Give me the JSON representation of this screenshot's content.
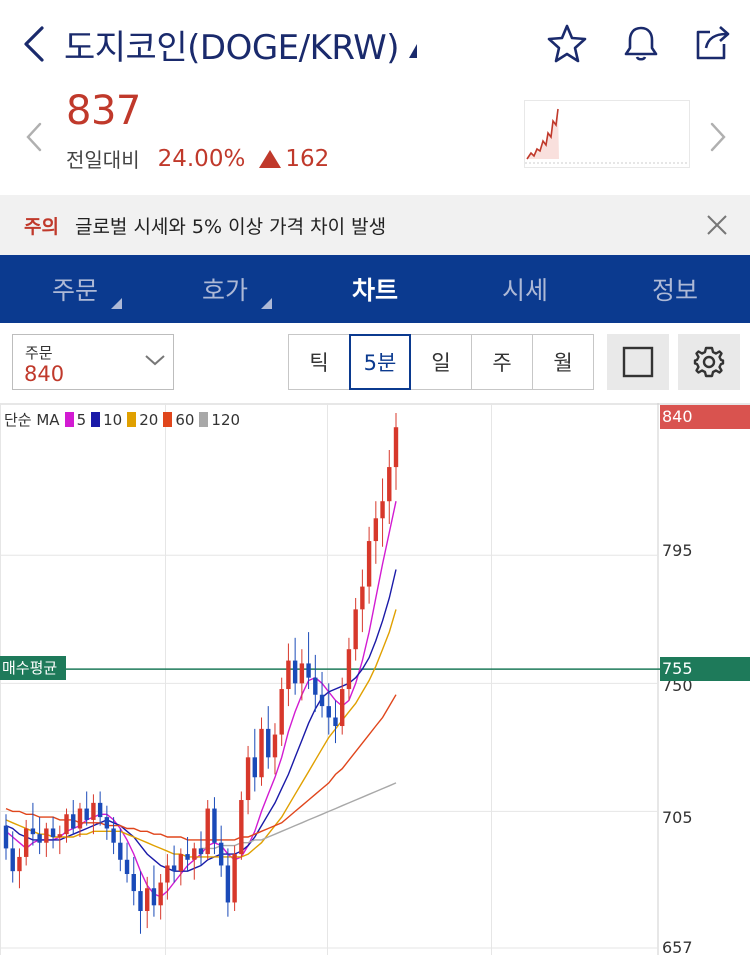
{
  "header": {
    "title": "도지코인(DOGE/KRW)",
    "icons": [
      "back-icon",
      "star-icon",
      "bell-icon",
      "share-icon"
    ]
  },
  "price_panel": {
    "price": "837",
    "change_label": "전일대비",
    "change_percent": "24.00%",
    "change_amount": "162",
    "colors": {
      "up": "#c0392b"
    }
  },
  "notice": {
    "tag": "주의",
    "text": "글로벌 시세와 5% 이상 가격 차이 발생"
  },
  "tabs": [
    {
      "label": "주문",
      "active": false,
      "has_sub": true
    },
    {
      "label": "호가",
      "active": false,
      "has_sub": true
    },
    {
      "label": "차트",
      "active": true,
      "has_sub": false
    },
    {
      "label": "시세",
      "active": false,
      "has_sub": false
    },
    {
      "label": "정보",
      "active": false,
      "has_sub": false
    }
  ],
  "controls": {
    "order_label": "주문",
    "order_value": "840",
    "periods": [
      {
        "label": "틱",
        "active": false
      },
      {
        "label": "5분",
        "active": true
      },
      {
        "label": "일",
        "active": false
      },
      {
        "label": "주",
        "active": false
      },
      {
        "label": "월",
        "active": false
      }
    ]
  },
  "chart_legend": {
    "prefix": "단순 MA",
    "items": [
      {
        "label": "5",
        "color": "#d21bd2"
      },
      {
        "label": "10",
        "color": "#1a1aa8"
      },
      {
        "label": "20",
        "color": "#e0a000"
      },
      {
        "label": "60",
        "color": "#e0461c"
      },
      {
        "label": "120",
        "color": "#a8a8a8"
      }
    ]
  },
  "chart_data": {
    "type": "candlestick",
    "interval": "5분",
    "y_ticks": [
      840,
      795,
      750,
      705,
      657
    ],
    "current_price_label": "840",
    "avg_buy_label": "매수평균",
    "avg_buy_value": "755",
    "ylim": [
      657,
      845
    ],
    "candles": [
      {
        "o": 700,
        "h": 704,
        "l": 688,
        "c": 692
      },
      {
        "o": 692,
        "h": 698,
        "l": 680,
        "c": 684
      },
      {
        "o": 684,
        "h": 692,
        "l": 678,
        "c": 689
      },
      {
        "o": 689,
        "h": 702,
        "l": 686,
        "c": 699
      },
      {
        "o": 699,
        "h": 708,
        "l": 693,
        "c": 697
      },
      {
        "o": 697,
        "h": 703,
        "l": 690,
        "c": 694
      },
      {
        "o": 694,
        "h": 701,
        "l": 689,
        "c": 699
      },
      {
        "o": 699,
        "h": 703,
        "l": 692,
        "c": 696
      },
      {
        "o": 696,
        "h": 700,
        "l": 690,
        "c": 697
      },
      {
        "o": 697,
        "h": 706,
        "l": 694,
        "c": 704
      },
      {
        "o": 704,
        "h": 709,
        "l": 697,
        "c": 699
      },
      {
        "o": 699,
        "h": 708,
        "l": 696,
        "c": 706
      },
      {
        "o": 706,
        "h": 712,
        "l": 700,
        "c": 702
      },
      {
        "o": 702,
        "h": 711,
        "l": 697,
        "c": 708
      },
      {
        "o": 708,
        "h": 712,
        "l": 700,
        "c": 703
      },
      {
        "o": 703,
        "h": 707,
        "l": 695,
        "c": 699
      },
      {
        "o": 699,
        "h": 703,
        "l": 690,
        "c": 694
      },
      {
        "o": 694,
        "h": 699,
        "l": 684,
        "c": 688
      },
      {
        "o": 688,
        "h": 694,
        "l": 680,
        "c": 683
      },
      {
        "o": 683,
        "h": 689,
        "l": 672,
        "c": 677
      },
      {
        "o": 677,
        "h": 684,
        "l": 662,
        "c": 670
      },
      {
        "o": 670,
        "h": 682,
        "l": 664,
        "c": 678
      },
      {
        "o": 678,
        "h": 686,
        "l": 668,
        "c": 672
      },
      {
        "o": 672,
        "h": 683,
        "l": 667,
        "c": 680
      },
      {
        "o": 680,
        "h": 690,
        "l": 674,
        "c": 686
      },
      {
        "o": 686,
        "h": 693,
        "l": 680,
        "c": 684
      },
      {
        "o": 684,
        "h": 692,
        "l": 679,
        "c": 690
      },
      {
        "o": 690,
        "h": 696,
        "l": 684,
        "c": 688
      },
      {
        "o": 688,
        "h": 694,
        "l": 681,
        "c": 692
      },
      {
        "o": 692,
        "h": 698,
        "l": 686,
        "c": 690
      },
      {
        "o": 690,
        "h": 709,
        "l": 688,
        "c": 706
      },
      {
        "o": 706,
        "h": 710,
        "l": 690,
        "c": 694
      },
      {
        "o": 694,
        "h": 700,
        "l": 682,
        "c": 686
      },
      {
        "o": 686,
        "h": 692,
        "l": 668,
        "c": 673
      },
      {
        "o": 673,
        "h": 693,
        "l": 670,
        "c": 690
      },
      {
        "o": 690,
        "h": 712,
        "l": 688,
        "c": 709
      },
      {
        "o": 709,
        "h": 728,
        "l": 704,
        "c": 724
      },
      {
        "o": 724,
        "h": 734,
        "l": 712,
        "c": 717
      },
      {
        "o": 717,
        "h": 738,
        "l": 714,
        "c": 734
      },
      {
        "o": 734,
        "h": 742,
        "l": 720,
        "c": 724
      },
      {
        "o": 724,
        "h": 736,
        "l": 718,
        "c": 732
      },
      {
        "o": 732,
        "h": 752,
        "l": 728,
        "c": 748
      },
      {
        "o": 748,
        "h": 764,
        "l": 742,
        "c": 758
      },
      {
        "o": 758,
        "h": 766,
        "l": 746,
        "c": 750
      },
      {
        "o": 750,
        "h": 762,
        "l": 744,
        "c": 757
      },
      {
        "o": 757,
        "h": 768,
        "l": 748,
        "c": 752
      },
      {
        "o": 752,
        "h": 760,
        "l": 740,
        "c": 746
      },
      {
        "o": 746,
        "h": 754,
        "l": 738,
        "c": 742
      },
      {
        "o": 742,
        "h": 750,
        "l": 732,
        "c": 738
      },
      {
        "o": 738,
        "h": 744,
        "l": 729,
        "c": 735
      },
      {
        "o": 735,
        "h": 752,
        "l": 732,
        "c": 748
      },
      {
        "o": 748,
        "h": 766,
        "l": 744,
        "c": 762
      },
      {
        "o": 762,
        "h": 780,
        "l": 758,
        "c": 776
      },
      {
        "o": 776,
        "h": 790,
        "l": 768,
        "c": 784
      },
      {
        "o": 784,
        "h": 805,
        "l": 778,
        "c": 800
      },
      {
        "o": 800,
        "h": 814,
        "l": 792,
        "c": 808
      },
      {
        "o": 808,
        "h": 822,
        "l": 798,
        "c": 814
      },
      {
        "o": 814,
        "h": 832,
        "l": 806,
        "c": 826
      },
      {
        "o": 826,
        "h": 845,
        "l": 818,
        "c": 840
      }
    ],
    "ma": [
      {
        "period": 5,
        "color": "#d21bd2",
        "values": [
          698,
          696,
          694,
          692,
          694,
          695,
          695,
          695,
          696,
          698,
          699,
          700,
          702,
          703,
          704,
          704,
          702,
          699,
          695,
          690,
          684,
          679,
          676,
          675,
          677,
          680,
          683,
          686,
          688,
          690,
          693,
          694,
          693,
          690,
          688,
          689,
          693,
          698,
          705,
          711,
          717,
          724,
          733,
          740,
          746,
          751,
          752,
          750,
          747,
          744,
          742,
          744,
          750,
          758,
          768,
          780,
          792,
          803,
          814
        ]
      },
      {
        "period": 10,
        "color": "#1a1aa8",
        "values": [
          700,
          699,
          697,
          696,
          695,
          695,
          695,
          695,
          695,
          696,
          697,
          698,
          699,
          700,
          701,
          702,
          701,
          700,
          698,
          696,
          693,
          690,
          688,
          686,
          685,
          684,
          684,
          684,
          685,
          686,
          688,
          689,
          690,
          690,
          690,
          691,
          693,
          696,
          700,
          704,
          708,
          713,
          718,
          724,
          730,
          736,
          741,
          745,
          747,
          748,
          749,
          750,
          752,
          755,
          759,
          765,
          772,
          780,
          790
        ]
      },
      {
        "period": 20,
        "color": "#e0a000",
        "values": [
          702,
          701,
          700,
          699,
          698,
          697,
          697,
          696,
          696,
          696,
          696,
          697,
          697,
          698,
          698,
          698,
          698,
          698,
          697,
          696,
          695,
          694,
          693,
          692,
          691,
          690,
          690,
          689,
          689,
          689,
          689,
          689,
          689,
          689,
          689,
          689,
          690,
          692,
          694,
          697,
          700,
          703,
          707,
          711,
          715,
          719,
          723,
          727,
          731,
          734,
          737,
          740,
          743,
          747,
          751,
          756,
          762,
          768,
          776
        ]
      },
      {
        "period": 60,
        "color": "#e0461c",
        "values": [
          706,
          705,
          705,
          704,
          704,
          703,
          703,
          703,
          702,
          702,
          702,
          701,
          701,
          701,
          701,
          700,
          700,
          700,
          699,
          699,
          698,
          698,
          697,
          697,
          696,
          696,
          696,
          695,
          695,
          695,
          695,
          695,
          695,
          695,
          695,
          696,
          696,
          697,
          698,
          699,
          700,
          701,
          703,
          705,
          707,
          709,
          711,
          713,
          715,
          718,
          720,
          723,
          726,
          729,
          732,
          735,
          738,
          742,
          746
        ]
      },
      {
        "period": 120,
        "color": "#a8a8a8",
        "values": [
          null,
          null,
          null,
          null,
          null,
          null,
          null,
          null,
          null,
          null,
          null,
          null,
          null,
          null,
          null,
          null,
          null,
          null,
          null,
          null,
          null,
          null,
          null,
          null,
          null,
          null,
          null,
          null,
          null,
          692,
          692,
          692,
          693,
          693,
          693,
          694,
          694,
          695,
          695,
          696,
          697,
          698,
          699,
          700,
          701,
          702,
          703,
          704,
          705,
          706,
          707,
          708,
          709,
          710,
          711,
          712,
          713,
          714,
          715
        ]
      }
    ],
    "colors": {
      "up": "#d7382b",
      "down": "#1a4ab8",
      "grid": "#e6e6e6",
      "avg_line": "#1e7a5a",
      "price_tag": "#d9534f"
    }
  }
}
